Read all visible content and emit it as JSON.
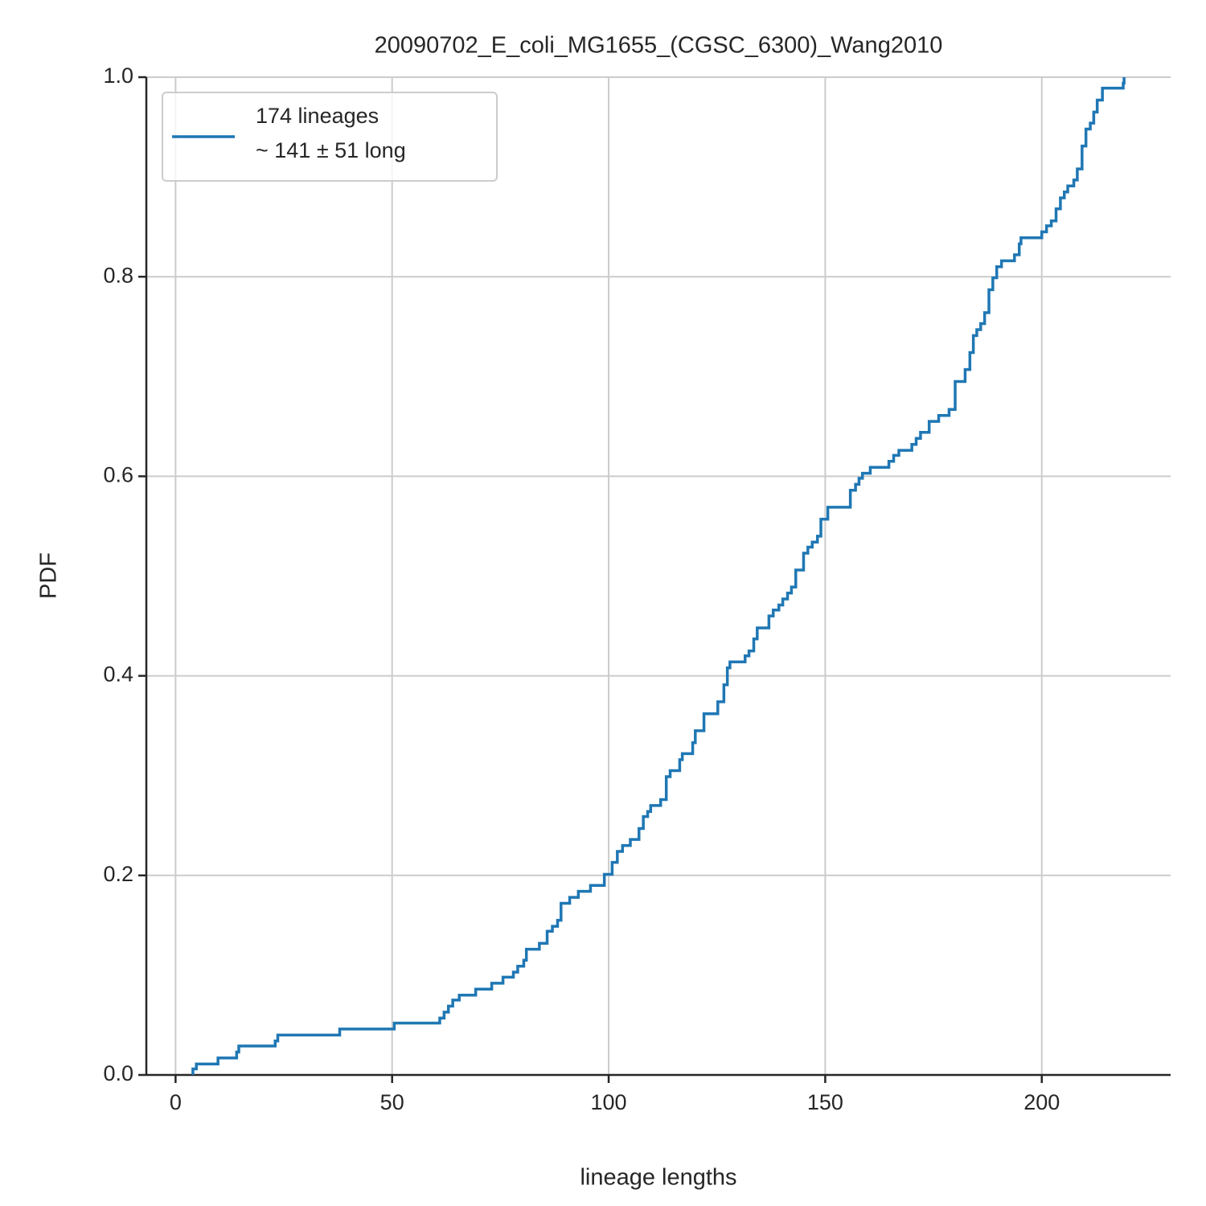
{
  "chart_data": {
    "type": "step",
    "title": "20090702_E_coli_MG1655_(CGSC_6300)_Wang2010",
    "xlabel": "lineage lengths",
    "ylabel": "PDF",
    "series": [
      {
        "name": "174 lineages\n~ 141 ± 51 long",
        "color": "#1f77b4",
        "x": [
          4,
          4,
          4.8,
          9.8,
          14.1,
          14.6,
          23,
          23.6,
          37.9,
          50.5,
          61,
          62,
          63,
          64,
          65.5,
          69.3,
          73,
          75.6,
          78,
          79,
          80.4,
          81,
          84,
          85.8,
          87,
          88.2,
          89,
          91,
          93,
          95.8,
          99,
          100.8,
          102,
          103.2,
          105,
          107,
          108,
          109,
          109.7,
          112,
          113.3,
          114.2,
          116.4,
          117,
          119.4,
          120,
          122,
          125.2,
          126.6,
          127.4,
          128,
          131.5,
          132.4,
          133.5,
          134.3,
          137,
          138,
          139.3,
          140.2,
          141.3,
          142.2,
          143.2,
          145,
          146,
          147,
          148.2,
          149,
          150.6,
          155.8,
          157,
          157.8,
          158.6,
          160.4,
          164.7,
          165.8,
          167,
          170,
          171,
          172,
          174,
          176.2,
          178.6,
          180,
          182.3,
          183.4,
          184.2,
          185,
          185.9,
          186.8,
          187.8,
          188.7,
          189.6,
          190.7,
          193.7,
          194.8,
          195.2,
          200,
          201.1,
          202.2,
          203.3,
          204.3,
          205.2,
          206,
          207.4,
          208.2,
          209.3,
          210.2,
          211.2,
          212,
          212.8,
          214,
          218.8,
          219
        ],
        "values": [
          0,
          0.006,
          0.011,
          0.017,
          0.023,
          0.029,
          0.034,
          0.04,
          0.046,
          0.052,
          0.057,
          0.063,
          0.069,
          0.075,
          0.08,
          0.086,
          0.092,
          0.098,
          0.103,
          0.109,
          0.115,
          0.126,
          0.132,
          0.144,
          0.149,
          0.155,
          0.172,
          0.178,
          0.184,
          0.19,
          0.201,
          0.213,
          0.224,
          0.23,
          0.236,
          0.247,
          0.259,
          0.264,
          0.27,
          0.276,
          0.299,
          0.305,
          0.316,
          0.322,
          0.333,
          0.345,
          0.362,
          0.374,
          0.391,
          0.408,
          0.414,
          0.42,
          0.425,
          0.437,
          0.448,
          0.46,
          0.466,
          0.471,
          0.477,
          0.483,
          0.489,
          0.506,
          0.523,
          0.529,
          0.534,
          0.54,
          0.557,
          0.569,
          0.586,
          0.592,
          0.598,
          0.603,
          0.609,
          0.615,
          0.621,
          0.626,
          0.632,
          0.638,
          0.644,
          0.655,
          0.661,
          0.667,
          0.695,
          0.707,
          0.724,
          0.741,
          0.747,
          0.753,
          0.764,
          0.787,
          0.799,
          0.81,
          0.816,
          0.822,
          0.833,
          0.839,
          0.845,
          0.851,
          0.856,
          0.868,
          0.879,
          0.885,
          0.891,
          0.897,
          0.908,
          0.931,
          0.948,
          0.954,
          0.965,
          0.977,
          0.989,
          0.994,
          1.0
        ]
      }
    ],
    "xlim": [
      -6.75,
      229.75
    ],
    "ylim": [
      0,
      1
    ],
    "xticks": [
      0,
      50,
      100,
      150,
      200
    ],
    "yticks": [
      {
        "value": 0,
        "label": "0.0"
      },
      0.2,
      0.4,
      0.6,
      0.8,
      {
        "value": 1,
        "label": "1.0"
      }
    ],
    "grid": true,
    "legend": "upper left"
  }
}
